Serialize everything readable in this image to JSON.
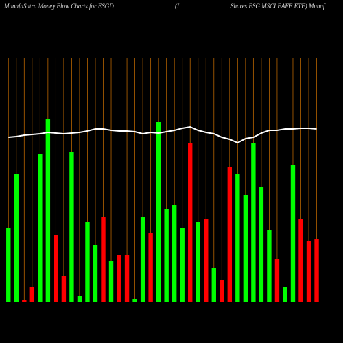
{
  "chart_data": {
    "type": "bar",
    "title": "MunafaSutra  Money Flow  Charts for ESGD",
    "subtitle": "(I",
    "title_right": "Shares ESG MSCI EAFE ETF) Munaf",
    "categories": [
      null,
      null,
      null,
      null,
      null,
      null,
      null,
      null,
      null,
      null,
      null,
      null,
      null,
      null,
      null,
      null,
      null,
      null,
      null,
      null,
      null,
      null,
      null,
      null,
      null,
      null,
      null,
      null,
      null,
      null,
      null,
      null,
      null,
      null,
      null,
      null,
      null,
      null,
      null,
      null
    ],
    "values": [
      108,
      186,
      3,
      21,
      216,
      266,
      97,
      38,
      218,
      8,
      117,
      83,
      123,
      59,
      68,
      68,
      4,
      123,
      101,
      262,
      136,
      141,
      107,
      231,
      117,
      121,
      49,
      32,
      197,
      187,
      156,
      231,
      167,
      105,
      63,
      21,
      200,
      121,
      88,
      91
    ],
    "colors": [
      "#00ff00",
      "#00ff00",
      "#ff0000",
      "#ff0000",
      "#00ff00",
      "#00ff00",
      "#ff0000",
      "#ff0000",
      "#00ff00",
      "#00ff00",
      "#00ff00",
      "#00ff00",
      "#ff0000",
      "#00ff00",
      "#ff0000",
      "#ff0000",
      "#00ff00",
      "#00ff00",
      "#ff0000",
      "#00ff00",
      "#00ff00",
      "#00ff00",
      "#00ff00",
      "#ff0000",
      "#00ff00",
      "#ff0000",
      "#00ff00",
      "#ff0000",
      "#ff0000",
      "#00ff00",
      "#00ff00",
      "#00ff00",
      "#00ff00",
      "#00ff00",
      "#ff0000",
      "#00ff00",
      "#00ff00",
      "#ff0000",
      "#ff0000",
      "#ff0000"
    ],
    "line": {
      "color": "#ffffff",
      "values": [
        240,
        241,
        243,
        244,
        245,
        247,
        246,
        245,
        246,
        247,
        249,
        252,
        252,
        250,
        249,
        249,
        248,
        245,
        247,
        246,
        248,
        250,
        253,
        255,
        250,
        247,
        245,
        240,
        237,
        232,
        238,
        240,
        246,
        250,
        250,
        252,
        252,
        253,
        253,
        252
      ]
    },
    "grid_color": "#b86400",
    "ylim": [
      0,
      360
    ]
  }
}
